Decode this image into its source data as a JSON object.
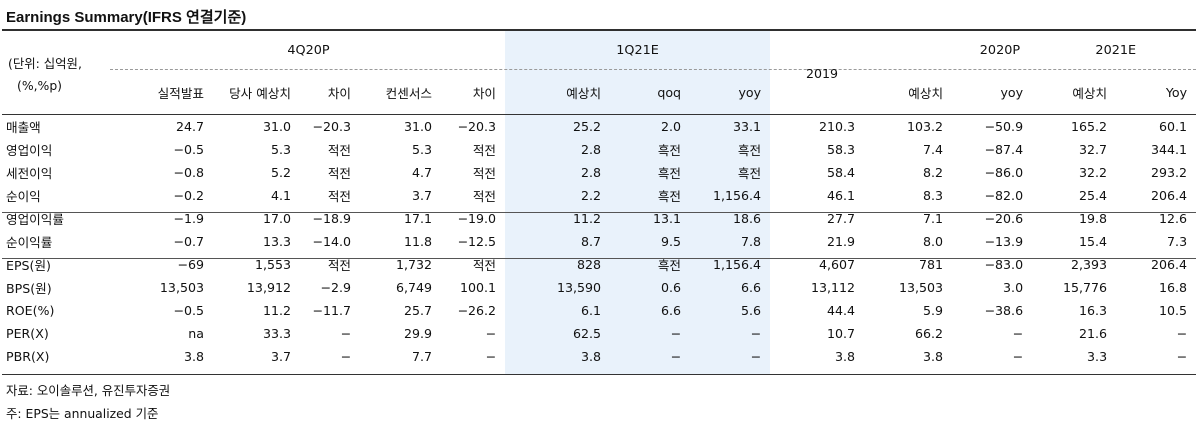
{
  "title": "Earnings Summary(IFRS 연결기준)",
  "header": {
    "unit": [
      "(단위: 십억원,",
      "(%,%p)"
    ],
    "groups": [
      "4Q20P",
      "1Q21E",
      "2019",
      "2020P",
      "2021E"
    ],
    "subcols": [
      "실적발표",
      "당사 예상치",
      "차이",
      "컨센서스",
      "차이",
      "예상치",
      "qoq",
      "yoy",
      "예상치",
      "yoy",
      "예상치",
      "Yoy"
    ]
  },
  "rows": [
    {
      "label": "매출액",
      "cells": [
        "24.7",
        "31.0",
        "−20.3",
        "31.0",
        "−20.3",
        "25.2",
        "2.0",
        "33.1",
        "210.3",
        "103.2",
        "−50.9",
        "165.2",
        "60.1"
      ]
    },
    {
      "label": "영업이익",
      "cells": [
        "−0.5",
        "5.3",
        "적전",
        "5.3",
        "적전",
        "2.8",
        "흑전",
        "흑전",
        "58.3",
        "7.4",
        "−87.4",
        "32.7",
        "344.1"
      ]
    },
    {
      "label": "세전이익",
      "cells": [
        "−0.8",
        "5.2",
        "적전",
        "4.7",
        "적전",
        "2.8",
        "흑전",
        "흑전",
        "58.4",
        "8.2",
        "−86.0",
        "32.2",
        "293.2"
      ]
    },
    {
      "label": "순이익",
      "cells": [
        "−0.2",
        "4.1",
        "적전",
        "3.7",
        "적전",
        "2.2",
        "흑전",
        "1,156.4",
        "46.1",
        "8.3",
        "−82.0",
        "25.4",
        "206.4"
      ]
    },
    {
      "label": "영업이익률",
      "cells": [
        "−1.9",
        "17.0",
        "−18.9",
        "17.1",
        "−19.0",
        "11.2",
        "13.1",
        "18.6",
        "27.7",
        "7.1",
        "−20.6",
        "19.8",
        "12.6"
      ]
    },
    {
      "label": "순이익률",
      "cells": [
        "−0.7",
        "13.3",
        "−14.0",
        "11.8",
        "−12.5",
        "8.7",
        "9.5",
        "7.8",
        "21.9",
        "8.0",
        "−13.9",
        "15.4",
        "7.3"
      ]
    },
    {
      "label": "EPS(원)",
      "cells": [
        "−69",
        "1,553",
        "적전",
        "1,732",
        "적전",
        "828",
        "흑전",
        "1,156.4",
        "4,607",
        "781",
        "−83.0",
        "2,393",
        "206.4"
      ]
    },
    {
      "label": "BPS(원)",
      "cells": [
        "13,503",
        "13,912",
        "−2.9",
        "6,749",
        "100.1",
        "13,590",
        "0.6",
        "6.6",
        "13,112",
        "13,503",
        "3.0",
        "15,776",
        "16.8"
      ]
    },
    {
      "label": "ROE(%)",
      "cells": [
        "−0.5",
        "11.2",
        "−11.7",
        "25.7",
        "−26.2",
        "6.1",
        "6.6",
        "5.6",
        "44.4",
        "5.9",
        "−38.6",
        "16.3",
        "10.5"
      ]
    },
    {
      "label": "PER(X)",
      "cells": [
        "na",
        "33.3",
        "−",
        "29.9",
        "−",
        "62.5",
        "−",
        "−",
        "10.7",
        "66.2",
        "−",
        "21.6",
        "−"
      ]
    },
    {
      "label": "PBR(X)",
      "cells": [
        "3.8",
        "3.7",
        "−",
        "7.7",
        "−",
        "3.8",
        "−",
        "−",
        "3.8",
        "3.8",
        "−",
        "3.3",
        "−"
      ]
    }
  ],
  "footnotes": [
    "자료: 오이솔루션, 유진투자증권",
    "주: EPS는 annualized 기준"
  ]
}
